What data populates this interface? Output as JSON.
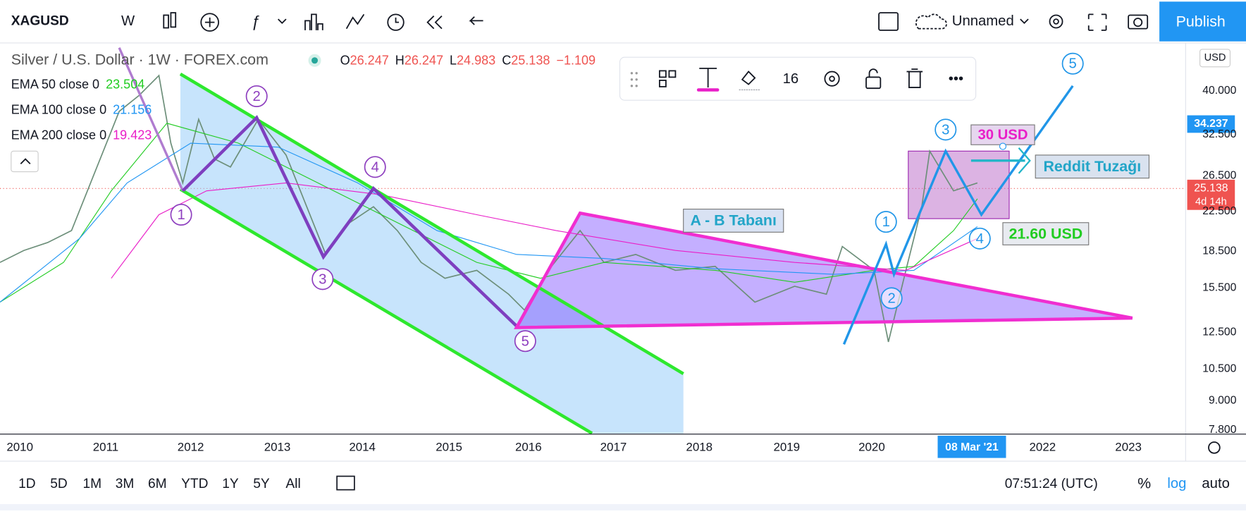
{
  "toolbar": {
    "symbol": "XAGUSD",
    "interval": "W",
    "layout_name": "Unnamed",
    "publish": "Publish"
  },
  "legend": {
    "title": "Silver / U.S. Dollar · 1W · FOREX.com",
    "ohlc": [
      {
        "key": "O",
        "value": "26.247"
      },
      {
        "key": "H",
        "value": "26.247"
      },
      {
        "key": "L",
        "value": "24.983"
      },
      {
        "key": "C",
        "value": "25.138"
      }
    ],
    "change": "−1.109",
    "indicators": [
      {
        "name": "EMA 50 close 0",
        "value": "23.504",
        "color": "#22cc22"
      },
      {
        "name": "EMA 100 close 0",
        "value": "21.156",
        "color": "#2196f3"
      },
      {
        "name": "EMA 200 close 0",
        "value": "19.423",
        "color": "#e91ec8"
      }
    ]
  },
  "drawing_toolbar": {
    "font_size": "16"
  },
  "price_axis": {
    "currency": "USD",
    "labels": [
      "40.000",
      "32.500",
      "26.500",
      "22.500",
      "18.500",
      "15.500",
      "12.500",
      "10.500",
      "9.000",
      "7.800"
    ],
    "crosshair_price": "34.237",
    "last_price": "25.138",
    "countdown": "4d 14h"
  },
  "time_axis": {
    "labels": [
      "2010",
      "2011",
      "2012",
      "2013",
      "2014",
      "2015",
      "2016",
      "2017",
      "2018",
      "2019",
      "2020",
      "2022",
      "2023"
    ],
    "crosshair_date": "08 Mar '21"
  },
  "annotations": {
    "purple_waves": [
      "1",
      "2",
      "3",
      "4",
      "5"
    ],
    "blue_waves": [
      "1",
      "2",
      "3",
      "4",
      "5"
    ],
    "base_label": "A - B Tabanı",
    "target_label": "30 USD",
    "trap_label": "Reddit Tuzağı",
    "support_label": "21.60 USD"
  },
  "bottom_bar": {
    "ranges": [
      "1D",
      "5D",
      "1M",
      "3M",
      "6M",
      "YTD",
      "1Y",
      "5Y",
      "All"
    ],
    "clock": "07:51:24 (UTC)",
    "percent": "%",
    "log": "log",
    "auto": "auto"
  }
}
